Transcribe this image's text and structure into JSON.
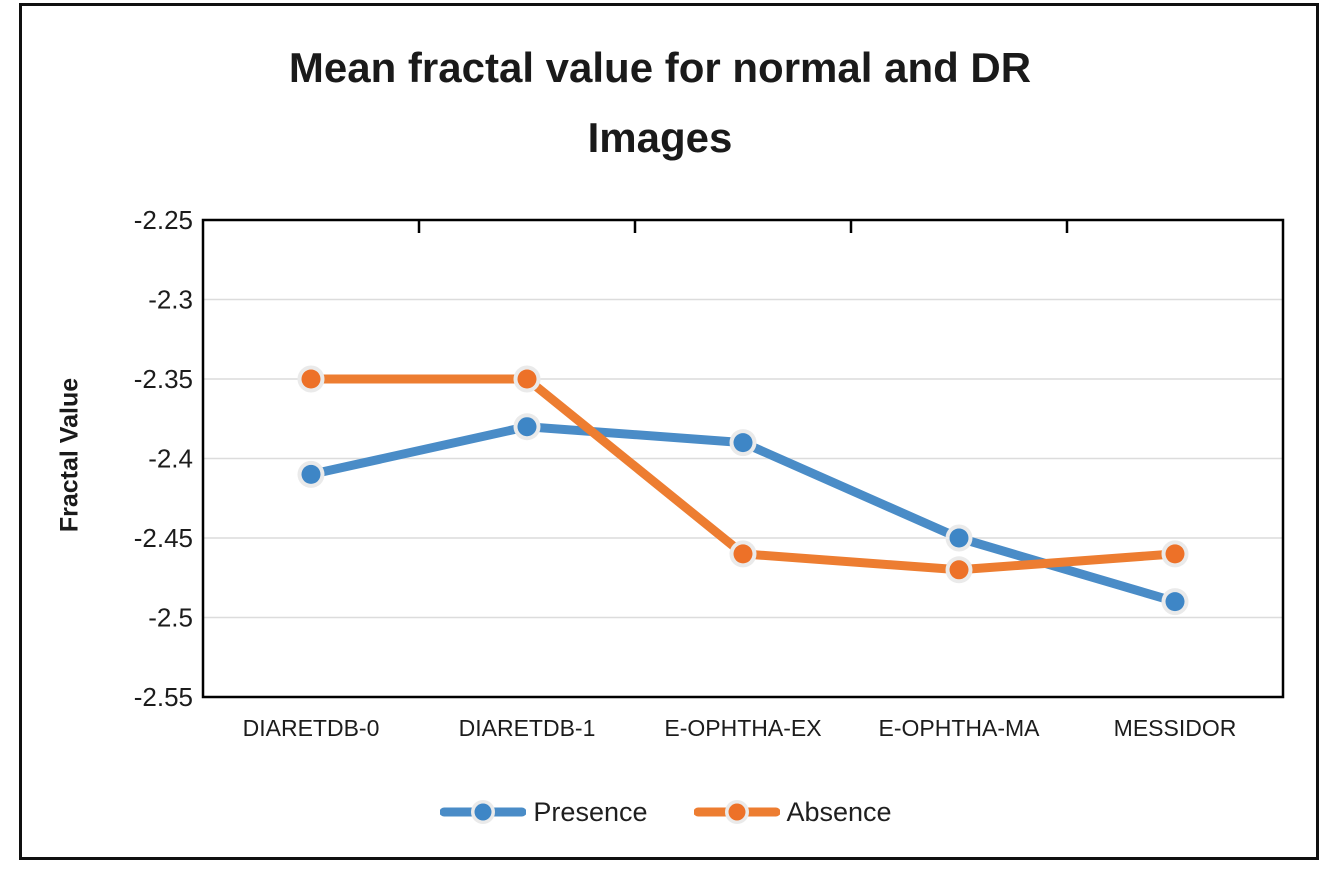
{
  "title": {
    "text": "Mean fractal value for normal and DR Images",
    "lines": [
      "Mean fractal value for normal and DR",
      "Images"
    ]
  },
  "chart_data": {
    "type": "line",
    "title": "Mean fractal value for normal and DR Images",
    "categories": [
      "DIARETDB-0",
      "DIARETDB-1",
      "E-OPHTHA-EX",
      "E-OPHTHA-MA",
      "MESSIDOR"
    ],
    "series": [
      {
        "name": "Presence",
        "color": "#4A8CC7",
        "marker_color": "#3E86C6",
        "values": [
          -2.41,
          -2.38,
          -2.39,
          -2.45,
          -2.49
        ]
      },
      {
        "name": "Absence",
        "color": "#ED7D31",
        "marker_color": "#ED7128",
        "values": [
          -2.35,
          -2.35,
          -2.46,
          -2.47,
          -2.46
        ]
      }
    ],
    "xlabel": "",
    "ylabel": "Fractal Value",
    "ylim": [
      -2.55,
      -2.25
    ],
    "ytick_step": 0.05,
    "yticks": [
      "-2.25",
      "-2.3",
      "-2.35",
      "-2.4",
      "-2.45",
      "-2.5",
      "-2.55"
    ],
    "grid": true,
    "legend_position": "bottom",
    "gridline_color": "#DCDCDC",
    "axis_color": "#000000",
    "marker_ring_color": "#EAEAEA",
    "text_color": "#1c1c1c"
  }
}
